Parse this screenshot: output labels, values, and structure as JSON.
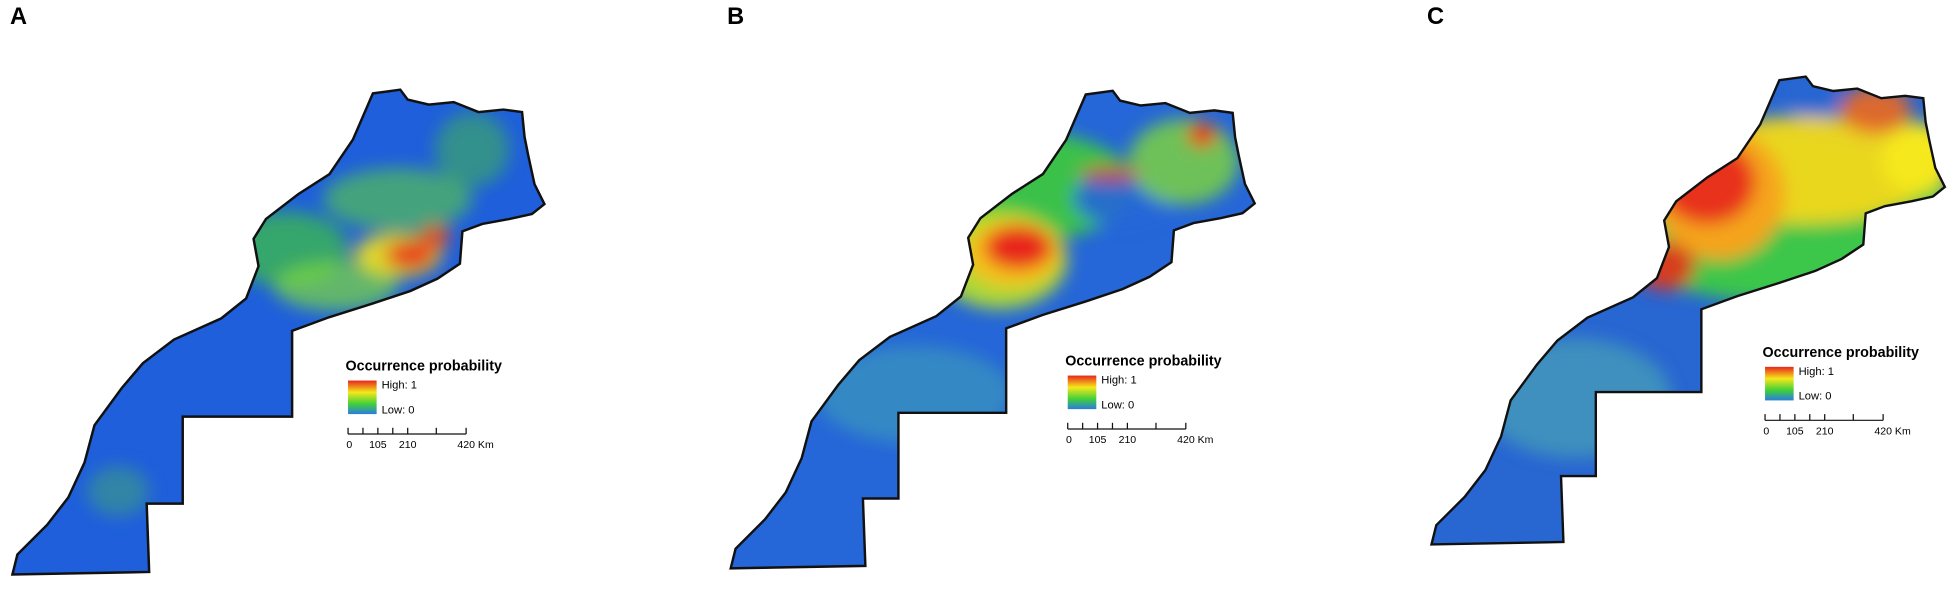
{
  "panels": [
    {
      "label": "A",
      "legend": {
        "title": "Occurrence probability",
        "high": "High: 1",
        "low": "Low: 0"
      },
      "scale_bar": [
        "0",
        "105",
        "210",
        "420 Km"
      ]
    },
    {
      "label": "B",
      "legend": {
        "title": "Occurrence probability",
        "high": "High: 1",
        "low": "Low: 0"
      },
      "scale_bar": [
        "0",
        "105",
        "210",
        "420 Km"
      ]
    },
    {
      "label": "C",
      "legend": {
        "title": "Occurrence probability",
        "high": "High: 1",
        "low": "Low: 0"
      },
      "scale_bar": [
        "0",
        "105",
        "210",
        "420 Km"
      ]
    }
  ]
}
